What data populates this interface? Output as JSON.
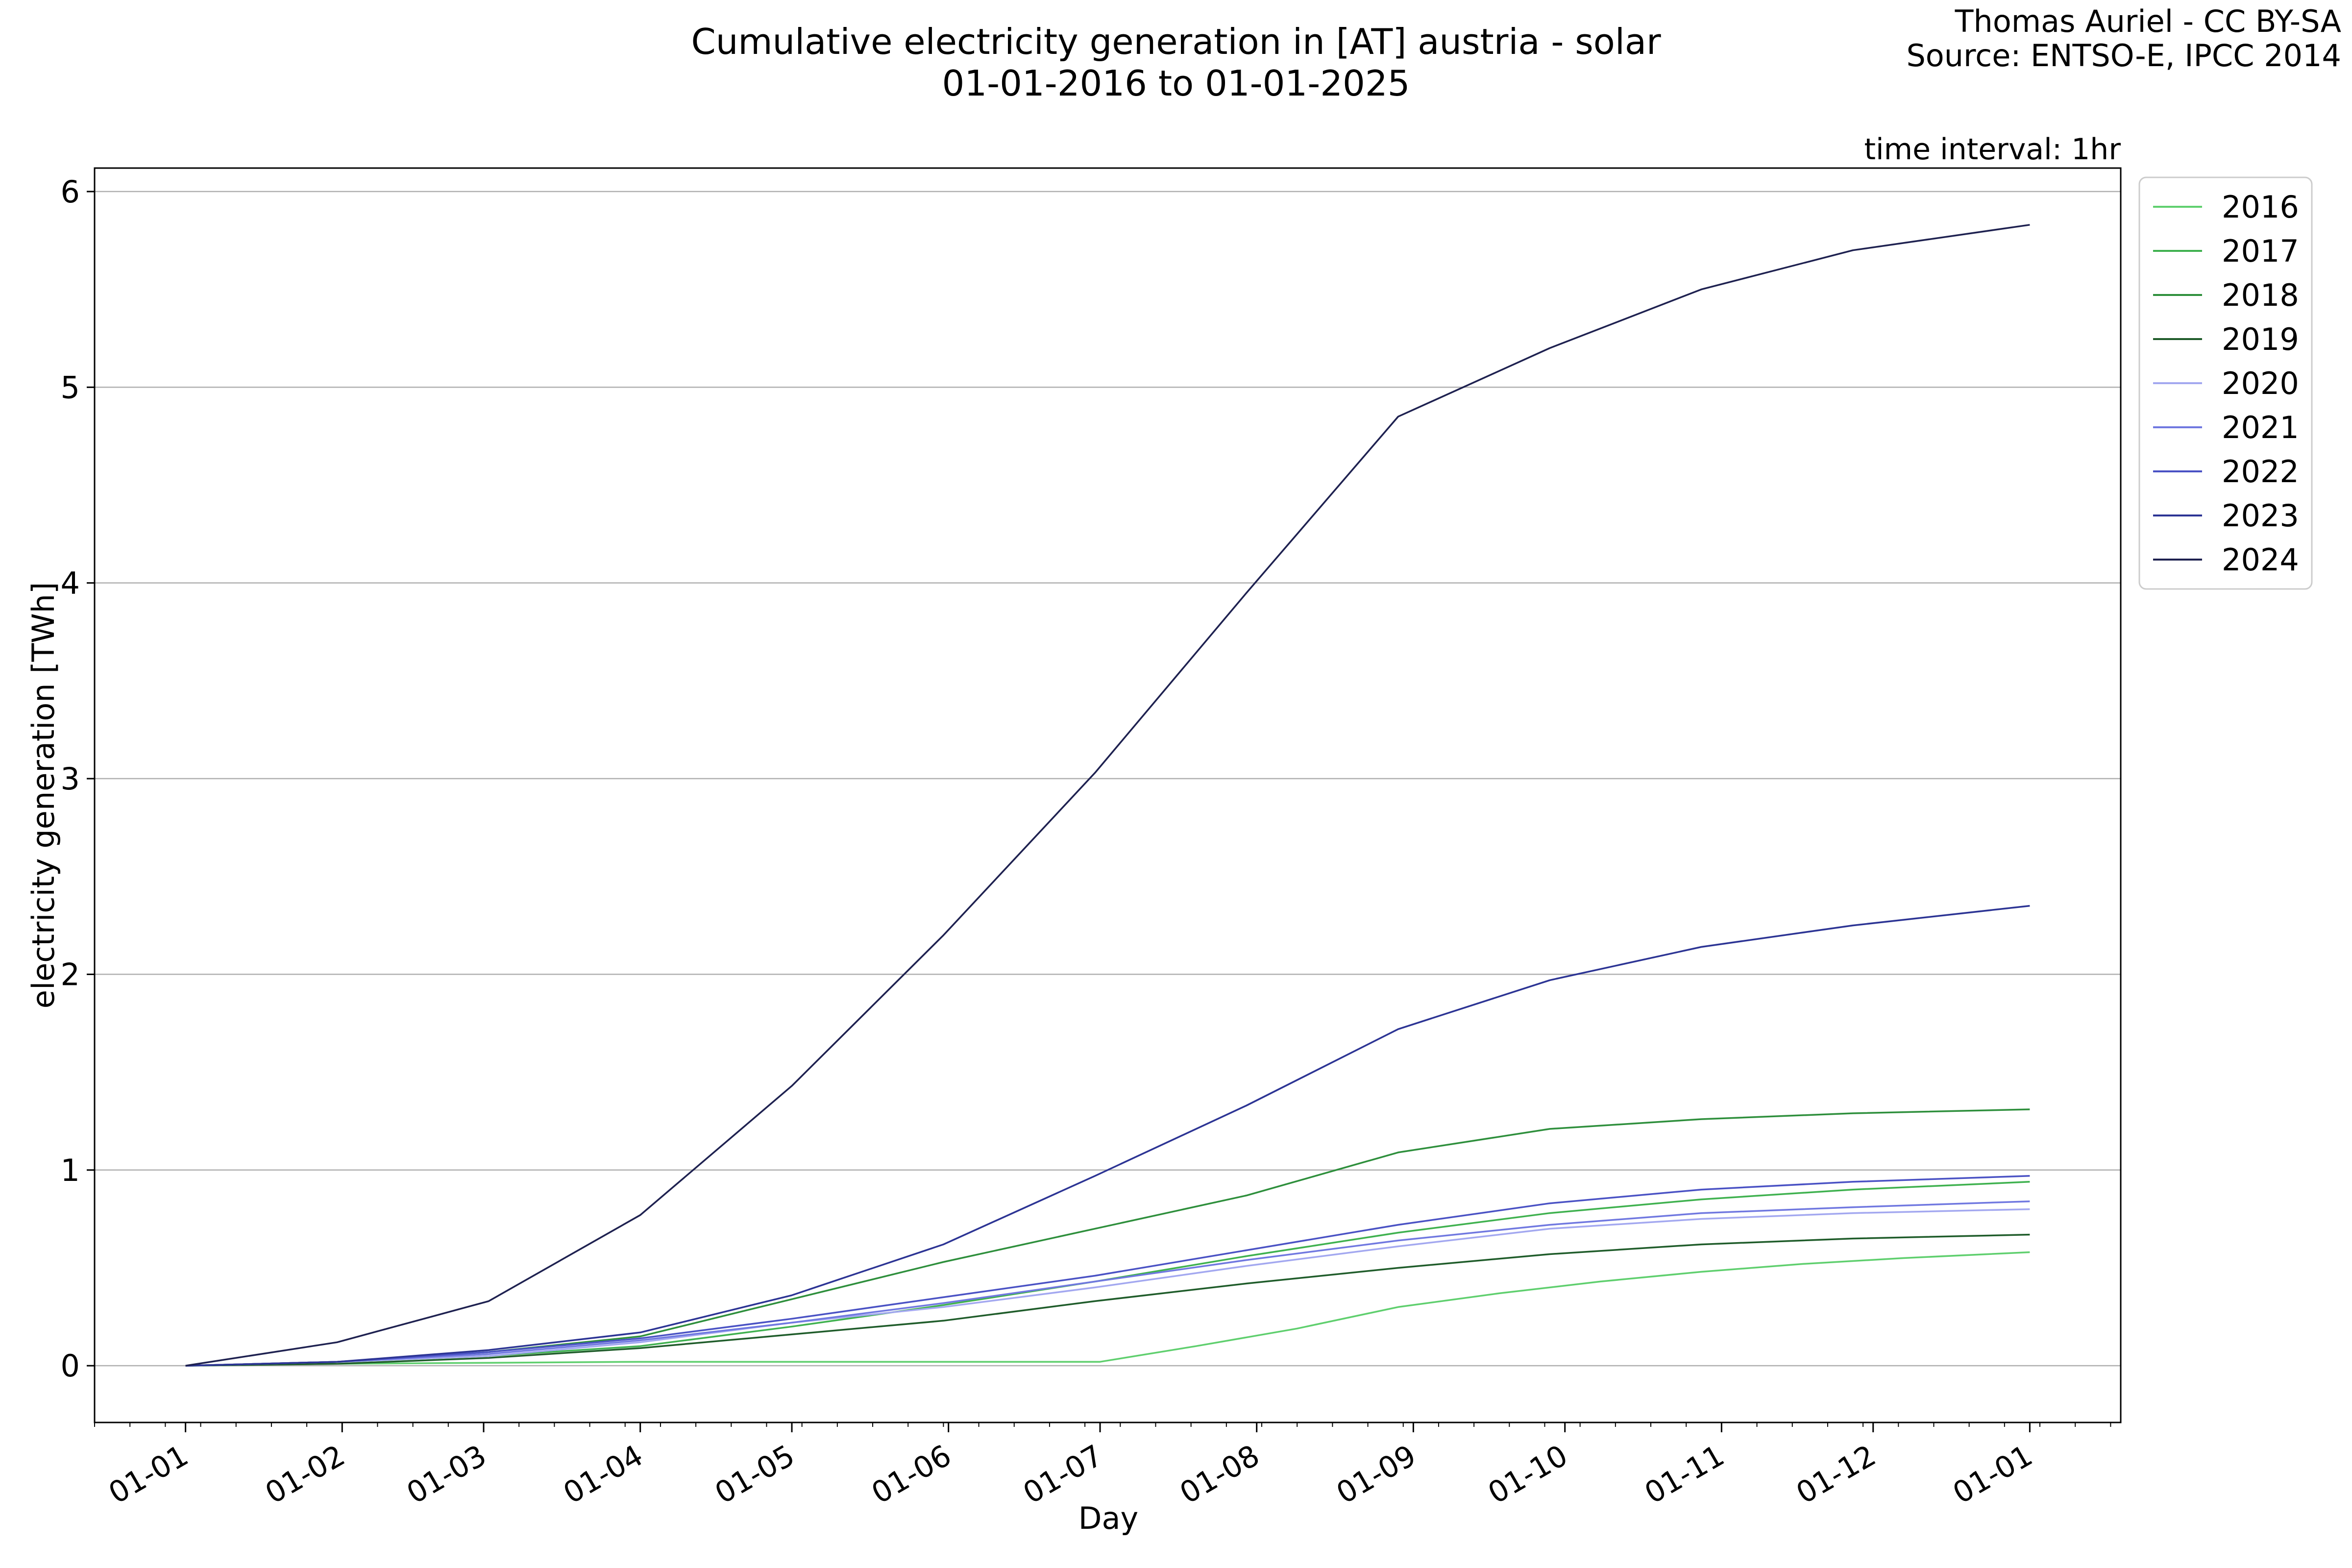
{
  "chart_data": {
    "type": "line",
    "title": "Cumulative electricity generation in [AT] austria - solar",
    "subtitle": "01-01-2016 to 01-01-2025",
    "credit_line1": "Thomas Auriel - CC BY-SA",
    "credit_line2": "Source: ENTSO-E, IPCC 2014",
    "interval_note": "time interval: 1hr",
    "xlabel": "Day",
    "ylabel": "electricity generation [TWh]",
    "x_ticks": [
      "01-01",
      "01-02",
      "01-03",
      "01-04",
      "01-05",
      "01-06",
      "01-07",
      "01-08",
      "01-09",
      "01-10",
      "01-11",
      "01-12",
      "01-01"
    ],
    "x_tick_days": [
      0,
      31,
      59,
      90,
      120,
      151,
      181,
      212,
      243,
      273,
      304,
      334,
      365
    ],
    "x_range": [
      -18,
      383
    ],
    "y_ticks": [
      0,
      1,
      2,
      3,
      4,
      5,
      6
    ],
    "ylim": [
      -0.29,
      6.12
    ],
    "grid": "horizontal",
    "legend_position": "outside-top-right",
    "series": [
      {
        "name": "2016",
        "color": "#5fcf6e",
        "x": [
          0,
          30,
          60,
          90,
          120,
          150,
          180,
          181,
          200,
          220,
          240,
          260,
          280,
          300,
          320,
          340,
          365
        ],
        "y": [
          0,
          0.01,
          0.015,
          0.02,
          0.02,
          0.02,
          0.02,
          0.02,
          0.1,
          0.19,
          0.3,
          0.37,
          0.43,
          0.48,
          0.52,
          0.55,
          0.58
        ]
      },
      {
        "name": "2017",
        "color": "#3fb14f",
        "x": [
          0,
          30,
          60,
          90,
          120,
          150,
          180,
          210,
          240,
          270,
          300,
          330,
          365
        ],
        "y": [
          0,
          0.02,
          0.05,
          0.1,
          0.2,
          0.31,
          0.43,
          0.56,
          0.68,
          0.78,
          0.85,
          0.9,
          0.94
        ]
      },
      {
        "name": "2018",
        "color": "#2e8f3c",
        "x": [
          0,
          30,
          60,
          90,
          120,
          150,
          180,
          210,
          240,
          270,
          300,
          330,
          365
        ],
        "y": [
          0,
          0.02,
          0.07,
          0.15,
          0.34,
          0.53,
          0.7,
          0.87,
          1.09,
          1.21,
          1.26,
          1.29,
          1.31
        ]
      },
      {
        "name": "2019",
        "color": "#1f5c2a",
        "x": [
          0,
          30,
          60,
          90,
          120,
          150,
          180,
          210,
          240,
          270,
          300,
          330,
          365
        ],
        "y": [
          0,
          0.01,
          0.04,
          0.09,
          0.16,
          0.23,
          0.33,
          0.42,
          0.5,
          0.57,
          0.62,
          0.65,
          0.67
        ]
      },
      {
        "name": "2020",
        "color": "#a3a8f0",
        "x": [
          0,
          30,
          60,
          90,
          120,
          150,
          180,
          210,
          240,
          270,
          300,
          330,
          365
        ],
        "y": [
          0,
          0.02,
          0.05,
          0.12,
          0.22,
          0.3,
          0.4,
          0.51,
          0.61,
          0.7,
          0.75,
          0.78,
          0.8
        ]
      },
      {
        "name": "2021",
        "color": "#7078e0",
        "x": [
          0,
          30,
          60,
          90,
          120,
          150,
          180,
          210,
          240,
          270,
          300,
          330,
          365
        ],
        "y": [
          0,
          0.02,
          0.06,
          0.13,
          0.22,
          0.32,
          0.43,
          0.54,
          0.64,
          0.72,
          0.78,
          0.81,
          0.84
        ]
      },
      {
        "name": "2022",
        "color": "#4a52c4",
        "x": [
          0,
          30,
          60,
          90,
          120,
          150,
          180,
          210,
          240,
          270,
          300,
          330,
          365
        ],
        "y": [
          0,
          0.02,
          0.07,
          0.14,
          0.24,
          0.35,
          0.46,
          0.59,
          0.72,
          0.83,
          0.9,
          0.94,
          0.97
        ]
      },
      {
        "name": "2023",
        "color": "#2c3494",
        "x": [
          0,
          30,
          60,
          90,
          120,
          150,
          180,
          210,
          240,
          270,
          300,
          330,
          365
        ],
        "y": [
          0,
          0.02,
          0.08,
          0.17,
          0.36,
          0.62,
          0.97,
          1.33,
          1.72,
          1.97,
          2.14,
          2.25,
          2.35
        ]
      },
      {
        "name": "2024",
        "color": "#1e2150",
        "x": [
          0,
          30,
          60,
          90,
          120,
          150,
          180,
          210,
          240,
          270,
          300,
          330,
          365
        ],
        "y": [
          0,
          0.12,
          0.33,
          0.77,
          1.43,
          2.2,
          3.03,
          3.95,
          4.85,
          5.2,
          5.5,
          5.7,
          5.83
        ]
      }
    ]
  }
}
